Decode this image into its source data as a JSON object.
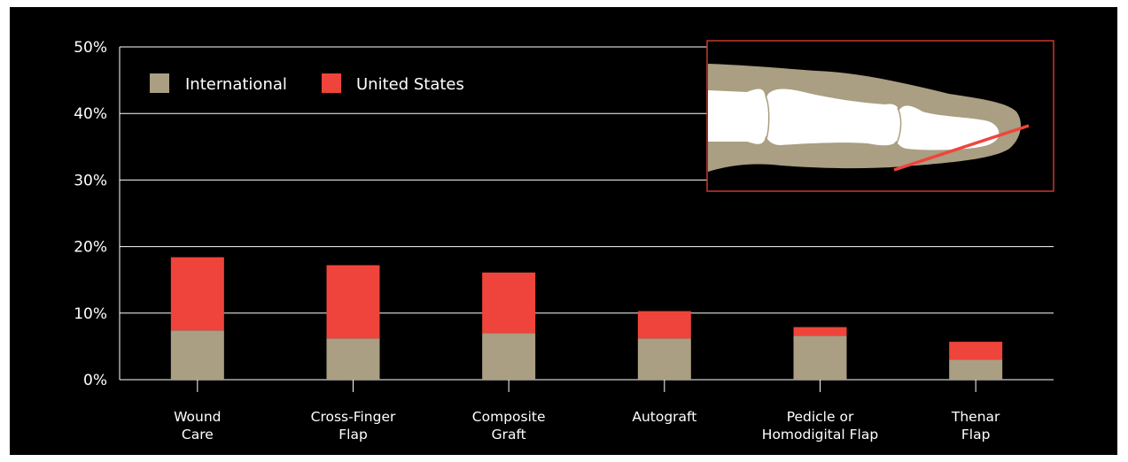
{
  "chart_data": {
    "type": "bar",
    "stacked": true,
    "categories": [
      [
        "Wound",
        "Care"
      ],
      [
        "Cross-Finger",
        "Flap"
      ],
      [
        "Composite",
        "Graft"
      ],
      [
        "Autograft"
      ],
      [
        "Pedicle or",
        "Homodigital Flap"
      ],
      [
        "Thenar",
        "Flap"
      ]
    ],
    "series": [
      {
        "name": "International",
        "color": "#aa9e83",
        "values": [
          7.4,
          6.2,
          7.0,
          6.2,
          6.6,
          3.0
        ]
      },
      {
        "name": "United States",
        "color": "#ef443b",
        "values": [
          11.0,
          11.0,
          9.1,
          4.1,
          1.3,
          2.7
        ]
      }
    ],
    "ylim": [
      0,
      50
    ],
    "yticks": [
      "0%",
      "10%",
      "20%",
      "30%",
      "40%",
      "50%"
    ],
    "ytick_values": [
      0,
      10,
      20,
      30,
      40,
      50
    ],
    "grid": true,
    "legend_position": "top-left",
    "background": "#000000",
    "inset": {
      "description_icon": "finger-bone-diagram-icon",
      "border_color": "#c8392f",
      "line_color": "#ef443b"
    }
  }
}
